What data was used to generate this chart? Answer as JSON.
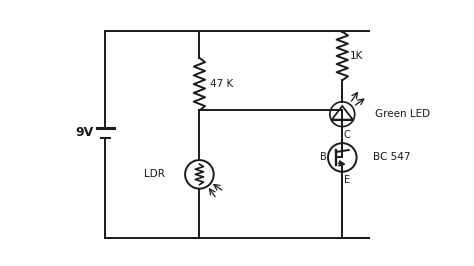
{
  "bg_color": "#ffffff",
  "wire_color": "#1a1a1a",
  "battery_label": "9V",
  "res1_label": "47 K",
  "res2_label": "1K",
  "ldr_label": "LDR",
  "led_label": "Green LED",
  "transistor_label": "BC 547",
  "transistor_pins": [
    "B",
    "C",
    "E"
  ],
  "xlim": [
    0,
    10
  ],
  "ylim": [
    0,
    7
  ],
  "lw": 1.4
}
